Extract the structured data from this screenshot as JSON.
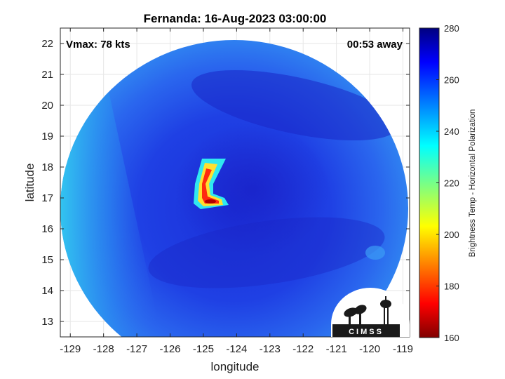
{
  "chart_data": {
    "type": "heatmap",
    "title": "Fernanda: 16-Aug-2023 03:00:00",
    "xlabel": "longitude",
    "ylabel": "latitude",
    "xlim": [
      -129.3,
      -118.8
    ],
    "ylim": [
      12.5,
      22.5
    ],
    "xticks": [
      -129,
      -128,
      -127,
      -126,
      -125,
      -124,
      -123,
      -122,
      -121,
      -120,
      -119
    ],
    "yticks": [
      13,
      14,
      15,
      16,
      17,
      18,
      19,
      20,
      21,
      22
    ],
    "grid": true,
    "storm_center": {
      "lon": -123.8,
      "lat": 17.2
    },
    "coverage_radius_deg": 5.5,
    "colorbar": {
      "label": "Brightness Temp - Horizontal Polarization",
      "min": 160,
      "max": 280,
      "ticks": [
        160,
        180,
        200,
        220,
        240,
        260,
        280
      ],
      "colormap": "jet"
    },
    "annotations": {
      "top_left": "Vmax: 78 kts",
      "top_right": "00:53 away"
    }
  },
  "logo": {
    "text": "CIMSS"
  },
  "colors": {
    "background_field": "#1f3ee6",
    "deep_cold": "#2230d8",
    "warm_edge": "#28b4f0"
  }
}
